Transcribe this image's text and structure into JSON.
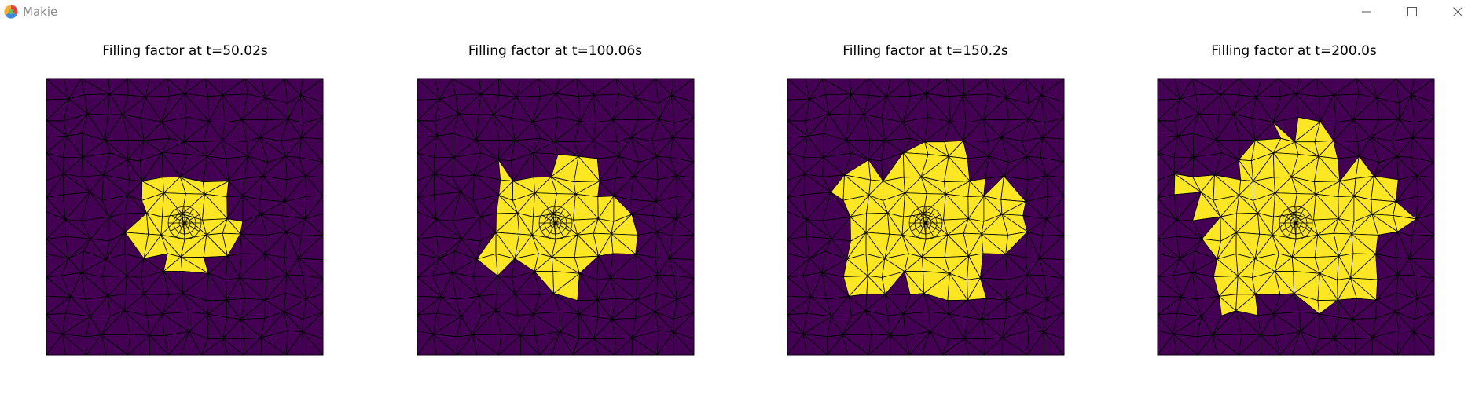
{
  "window": {
    "title": "Makie",
    "logo_icon": "makie-logo-icon",
    "controls": {
      "minimize_icon": "minimize-icon",
      "maximize_icon": "maximize-icon",
      "close_icon": "close-icon"
    }
  },
  "colors": {
    "empty": "#440154",
    "filled": "#FDE725",
    "mesh_lines": "#000000",
    "titlebar_text": "#8a8a8a"
  },
  "plots": [
    {
      "title": "Filling factor at t=50.02s",
      "filled_extent": 0.34
    },
    {
      "title": "Filling factor at t=100.06s",
      "filled_extent": 0.46
    },
    {
      "title": "Filling factor at t=150.2s",
      "filled_extent": 0.58
    },
    {
      "title": "Filling factor at t=200.0s",
      "filled_extent": 0.67
    }
  ]
}
